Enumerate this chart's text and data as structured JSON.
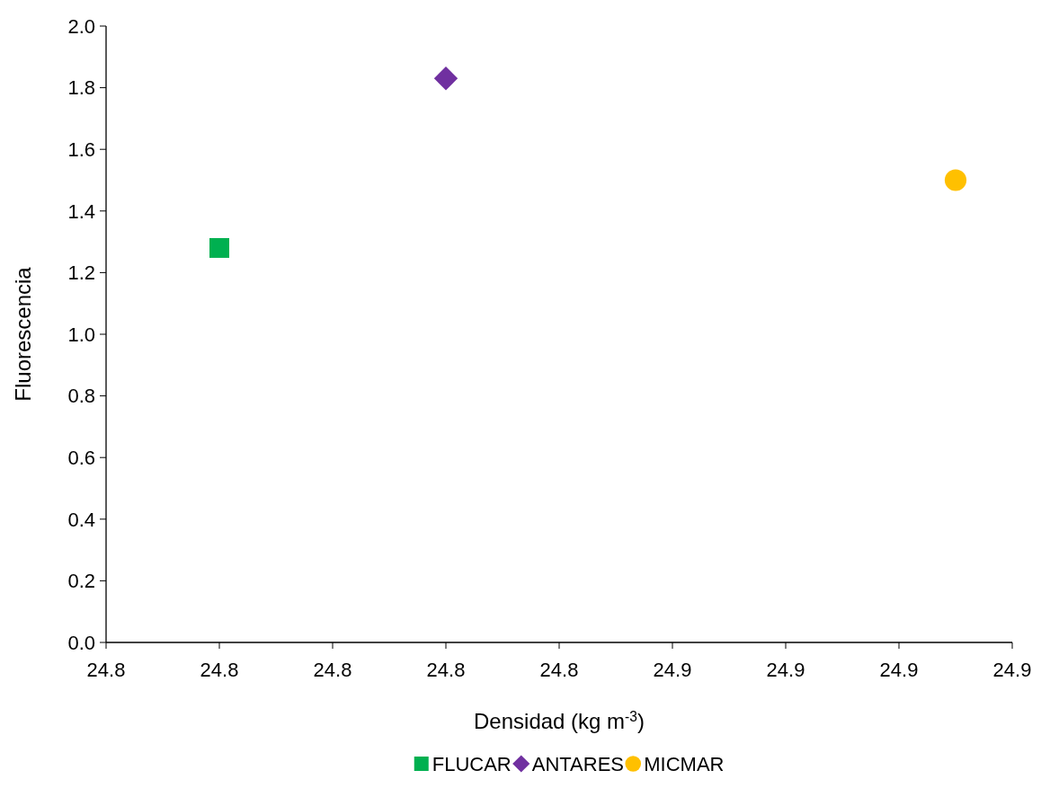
{
  "chart_data": {
    "type": "scatter",
    "xlabel": "Densidad (kg m$^{-3}$)",
    "ylabel": "Fluorescencia",
    "xlim": [
      24.76,
      24.92
    ],
    "xticks": [
      {
        "value": 24.76,
        "label": "24.8"
      },
      {
        "value": 24.78,
        "label": "24.8"
      },
      {
        "value": 24.8,
        "label": "24.8"
      },
      {
        "value": 24.82,
        "label": "24.8"
      },
      {
        "value": 24.84,
        "label": "24.8"
      },
      {
        "value": 24.86,
        "label": "24.9"
      },
      {
        "value": 24.88,
        "label": "24.9"
      },
      {
        "value": 24.9,
        "label": "24.9"
      },
      {
        "value": 24.92,
        "label": "24.9"
      }
    ],
    "ylim": [
      0,
      2
    ],
    "yticks": [
      {
        "value": 0,
        "label": "0.0"
      },
      {
        "value": 0.2,
        "label": "0.2"
      },
      {
        "value": 0.4,
        "label": "0.4"
      },
      {
        "value": 0.6,
        "label": "0.6"
      },
      {
        "value": 0.8,
        "label": "0.8"
      },
      {
        "value": 1,
        "label": "1.0"
      },
      {
        "value": 1.2,
        "label": "1.2"
      },
      {
        "value": 1.4,
        "label": "1.4"
      },
      {
        "value": 1.6,
        "label": "1.6"
      },
      {
        "value": 1.8,
        "label": "1.8"
      },
      {
        "value": 2,
        "label": "2.0"
      }
    ],
    "grid": false,
    "legend": "bottom",
    "series": [
      {
        "name": "FLUCAR",
        "color": "#00b050",
        "marker": "square",
        "x": [
          24.78
        ],
        "values": [
          1.28
        ]
      },
      {
        "name": "ANTARES",
        "color": "#7030a0",
        "marker": "diamond",
        "x": [
          24.82
        ],
        "values": [
          1.83
        ]
      },
      {
        "name": "MICMAR",
        "color": "#ffc000",
        "marker": "circle",
        "x": [
          24.91
        ],
        "values": [
          1.5
        ]
      }
    ]
  }
}
